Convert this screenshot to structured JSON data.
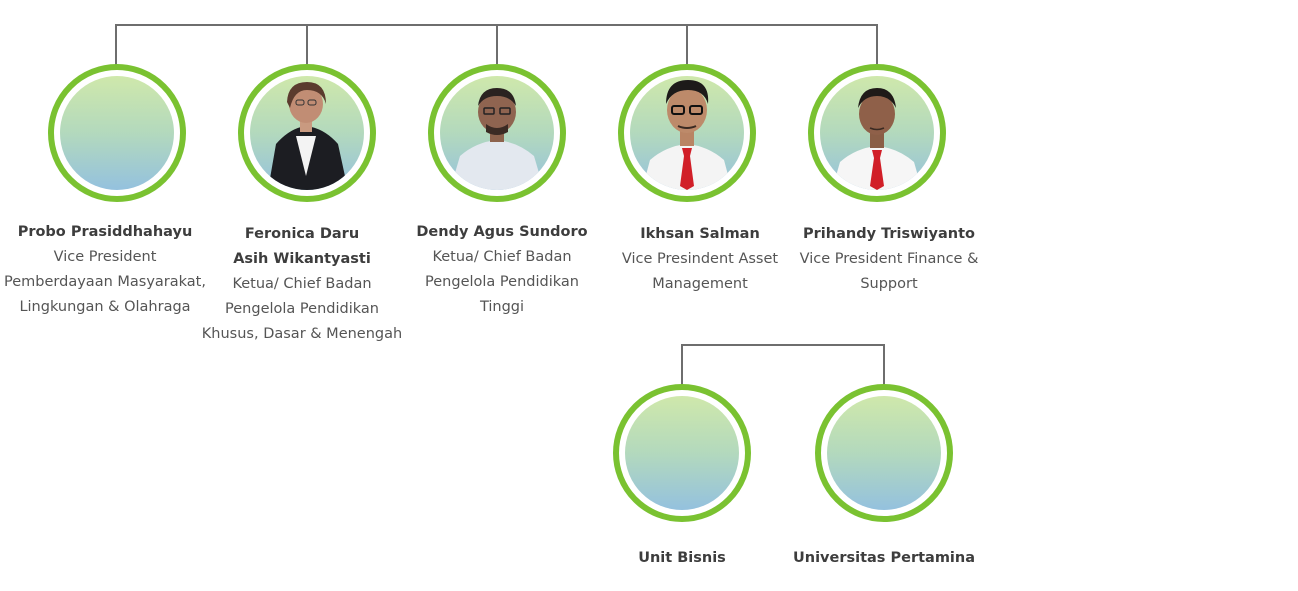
{
  "people": [
    {
      "name": "Probo Prasiddhahayu",
      "role": "Vice President Pemberdayaan Masyarakat, Lingkungan & Olahraga",
      "photo": "none"
    },
    {
      "name": "Feronica Daru Asih Wikantyasti",
      "role": "Ketua/ Chief Badan Pengelola Pendidikan Khusus, Dasar & Menengah",
      "photo": "woman-dark-blazer"
    },
    {
      "name": "Dendy Agus Sundoro",
      "role": "Ketua/ Chief Badan Pengelola Pendidikan Tinggi",
      "photo": "man-light-shirt-glasses"
    },
    {
      "name": "Ikhsan Salman",
      "role": "Vice Presindent Asset Management",
      "photo": "man-white-shirt-red-tie-glasses"
    },
    {
      "name": "Prihandy Triswiyanto",
      "role": "Vice President Finance & Support",
      "photo": "man-white-shirt-red-tie"
    }
  ],
  "units": [
    {
      "name": "Unit Bisnis"
    },
    {
      "name": "Universitas Pertamina"
    }
  ],
  "colors": {
    "ring": "#7ac231",
    "connector": "#6e6e6e",
    "gradient_top": "#cfe8ab",
    "gradient_bottom": "#94c1de"
  }
}
